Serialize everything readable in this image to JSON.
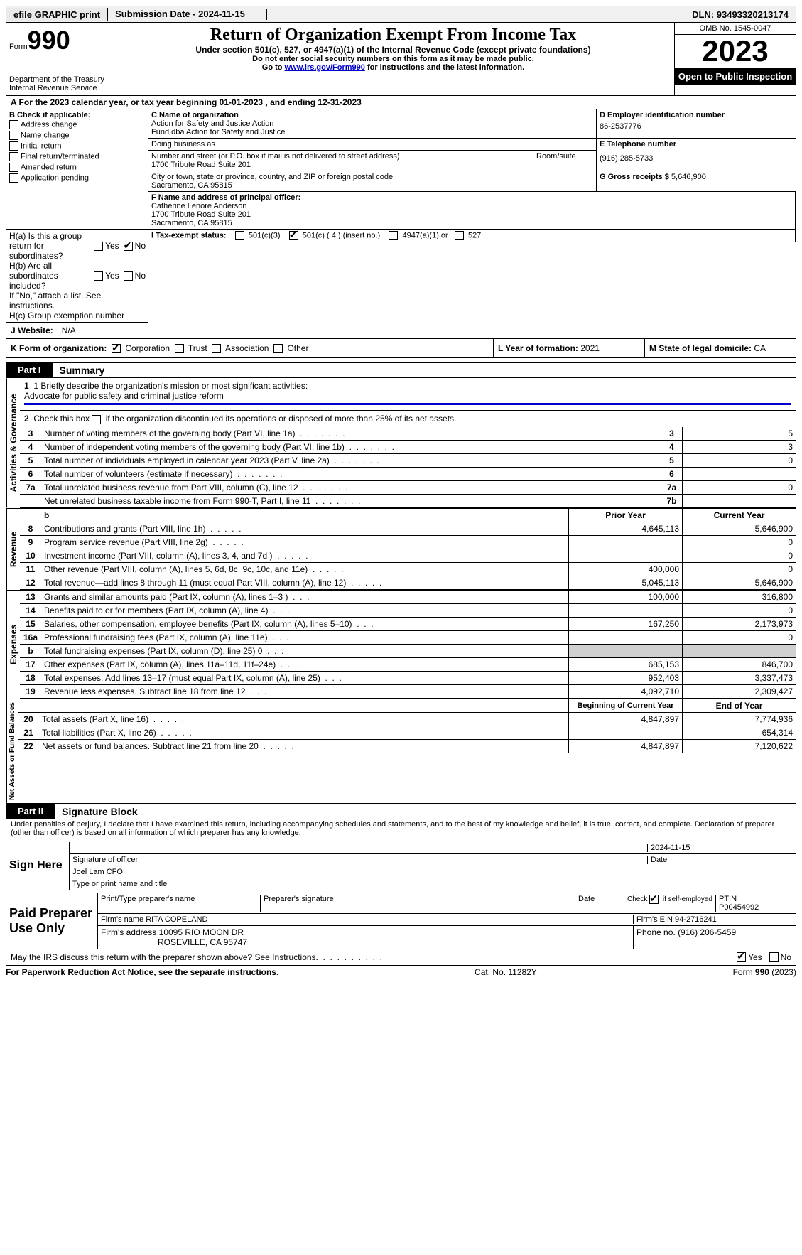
{
  "topbar": {
    "efile": "efile GRAPHIC print",
    "submission_label": "Submission Date - ",
    "submission_date": "2024-11-15",
    "dln_label": "DLN: ",
    "dln": "93493320213174"
  },
  "header": {
    "form_word": "Form",
    "form_number": "990",
    "dept": "Department of the Treasury\nInternal Revenue Service",
    "title": "Return of Organization Exempt From Income Tax",
    "subtitle": "Under section 501(c), 527, or 4947(a)(1) of the Internal Revenue Code (except private foundations)",
    "instr1": "Do not enter social security numbers on this form as it may be made public.",
    "instr2_pre": "Go to ",
    "instr2_link": "www.irs.gov/Form990",
    "instr2_post": " for instructions and the latest information.",
    "omb": "OMB No. 1545-0047",
    "year": "2023",
    "inspect": "Open to Public Inspection"
  },
  "rowA": {
    "text_pre": "A For the 2023 calendar year, or tax year beginning ",
    "begin": "01-01-2023",
    "mid": "   , and ending ",
    "end": "12-31-2023"
  },
  "boxB": {
    "label": "B Check if applicable:",
    "items": [
      "Address change",
      "Name change",
      "Initial return",
      "Final return/terminated",
      "Amended return",
      "Application pending"
    ]
  },
  "boxC": {
    "label": "C Name of organization",
    "name1": "Action for Safety and Justice Action",
    "name2": "Fund dba Action for Safety and Justice",
    "dba_label": "Doing business as",
    "dba": "",
    "street_label": "Number and street (or P.O. box if mail is not delivered to street address)",
    "street": "1700 Tribute Road Suite 201",
    "room_label": "Room/suite",
    "city_label": "City or town, state or province, country, and ZIP or foreign postal code",
    "city": "Sacramento, CA  95815"
  },
  "boxD": {
    "label": "D Employer identification number",
    "value": "86-2537776"
  },
  "boxE": {
    "label": "E Telephone number",
    "value": "(916) 285-5733"
  },
  "boxG": {
    "label": "G Gross receipts $ ",
    "value": "5,646,900"
  },
  "boxF": {
    "label": "F  Name and address of principal officer:",
    "name": "Catherine Lenore Anderson",
    "addr1": "1700 Tribute Road Suite 201",
    "addr2": "Sacramento, CA  95815"
  },
  "boxH": {
    "a_label": "H(a)  Is this a group return for subordinates?",
    "b_label": "H(b)  Are all subordinates included?",
    "note": "If \"No,\" attach a list. See instructions.",
    "c_label": "H(c)  Group exemption number",
    "ha_yes": false,
    "ha_no": true,
    "hb_yes": false,
    "hb_no": false
  },
  "rowI": {
    "label": "I  Tax-exempt status:",
    "opts": [
      "501(c)(3)",
      "501(c) ( 4 ) (insert no.)",
      "4947(a)(1) or",
      "527"
    ],
    "checked_index": 1
  },
  "rowJ": {
    "label": "J  Website:",
    "value": "N/A"
  },
  "rowK": {
    "label": "K Form of organization:",
    "opts": [
      "Corporation",
      "Trust",
      "Association",
      "Other"
    ],
    "checked_index": 0
  },
  "rowL": {
    "label": "L Year of formation: ",
    "value": "2021"
  },
  "rowM": {
    "label": "M State of legal domicile: ",
    "value": "CA"
  },
  "parts": {
    "part1": "Part I",
    "summary": "Summary",
    "part2": "Part II",
    "sigblock": "Signature Block"
  },
  "summary": {
    "line1_label": "1  Briefly describe the organization's mission or most significant activities:",
    "line1_text": "Advocate for public safety and criminal justice reform",
    "line2": "Check this box        if the organization discontinued its operations or disposed of more than 25% of its net assets.",
    "sections": {
      "gov": "Activities & Governance",
      "rev": "Revenue",
      "exp": "Expenses",
      "net": "Net Assets or Fund Balances"
    },
    "col_headers": {
      "prior": "Prior Year",
      "current": "Current Year",
      "begin": "Beginning of Current Year",
      "end": "End of Year"
    },
    "lines": [
      {
        "no": "3",
        "desc": "Number of voting members of the governing body (Part VI, line 1a)",
        "box": "3",
        "val": "5"
      },
      {
        "no": "4",
        "desc": "Number of independent voting members of the governing body (Part VI, line 1b)",
        "box": "4",
        "val": "3"
      },
      {
        "no": "5",
        "desc": "Total number of individuals employed in calendar year 2023 (Part V, line 2a)",
        "box": "5",
        "val": "0"
      },
      {
        "no": "6",
        "desc": "Total number of volunteers (estimate if necessary)",
        "box": "6",
        "val": ""
      },
      {
        "no": "7a",
        "desc": "Total unrelated business revenue from Part VIII, column (C), line 12",
        "box": "7a",
        "val": "0"
      },
      {
        "no": "",
        "desc": "Net unrelated business taxable income from Form 990-T, Part I, line 11",
        "box": "7b",
        "val": ""
      }
    ],
    "rev_lines": [
      {
        "no": "8",
        "desc": "Contributions and grants (Part VIII, line 1h)",
        "prior": "4,645,113",
        "curr": "5,646,900"
      },
      {
        "no": "9",
        "desc": "Program service revenue (Part VIII, line 2g)",
        "prior": "",
        "curr": "0"
      },
      {
        "no": "10",
        "desc": "Investment income (Part VIII, column (A), lines 3, 4, and 7d )",
        "prior": "",
        "curr": "0"
      },
      {
        "no": "11",
        "desc": "Other revenue (Part VIII, column (A), lines 5, 6d, 8c, 9c, 10c, and 11e)",
        "prior": "400,000",
        "curr": "0"
      },
      {
        "no": "12",
        "desc": "Total revenue—add lines 8 through 11 (must equal Part VIII, column (A), line 12)",
        "prior": "5,045,113",
        "curr": "5,646,900"
      }
    ],
    "exp_lines": [
      {
        "no": "13",
        "desc": "Grants and similar amounts paid (Part IX, column (A), lines 1–3 )",
        "prior": "100,000",
        "curr": "316,800"
      },
      {
        "no": "14",
        "desc": "Benefits paid to or for members (Part IX, column (A), line 4)",
        "prior": "",
        "curr": "0"
      },
      {
        "no": "15",
        "desc": "Salaries, other compensation, employee benefits (Part IX, column (A), lines 5–10)",
        "prior": "167,250",
        "curr": "2,173,973"
      },
      {
        "no": "16a",
        "desc": "Professional fundraising fees (Part IX, column (A), line 11e)",
        "prior": "",
        "curr": "0"
      },
      {
        "no": "b",
        "desc": "Total fundraising expenses (Part IX, column (D), line 25) 0",
        "prior": "SHADED",
        "curr": "SHADED"
      },
      {
        "no": "17",
        "desc": "Other expenses (Part IX, column (A), lines 11a–11d, 11f–24e)",
        "prior": "685,153",
        "curr": "846,700"
      },
      {
        "no": "18",
        "desc": "Total expenses. Add lines 13–17 (must equal Part IX, column (A), line 25)",
        "prior": "952,403",
        "curr": "3,337,473"
      },
      {
        "no": "19",
        "desc": "Revenue less expenses. Subtract line 18 from line 12",
        "prior": "4,092,710",
        "curr": "2,309,427"
      }
    ],
    "net_lines": [
      {
        "no": "20",
        "desc": "Total assets (Part X, line 16)",
        "prior": "4,847,897",
        "curr": "7,774,936"
      },
      {
        "no": "21",
        "desc": "Total liabilities (Part X, line 26)",
        "prior": "",
        "curr": "654,314"
      },
      {
        "no": "22",
        "desc": "Net assets or fund balances. Subtract line 21 from line 20",
        "prior": "4,847,897",
        "curr": "7,120,622"
      }
    ]
  },
  "sigblock": {
    "penalty": "Under penalties of perjury, I declare that I have examined this return, including accompanying schedules and statements, and to the best of my knowledge and belief, it is true, correct, and complete. Declaration of preparer (other than officer) is based on all information of which preparer has any knowledge.",
    "sign_here": "Sign Here",
    "sig_date": "2024-11-15",
    "sig_officer_label": "Signature of officer",
    "date_label": "Date",
    "officer_name": "Joel Lam  CFO",
    "name_title_label": "Type or print name and title",
    "paid": "Paid Preparer Use Only",
    "prep_name_label": "Print/Type preparer's name",
    "prep_sig_label": "Preparer's signature",
    "check_self": "Check         if self-employed",
    "check_self_checked": true,
    "ptin_label": "PTIN",
    "ptin": "P00454992",
    "firm_name_label": "Firm's name    ",
    "firm_name": "RITA COPELAND",
    "firm_ein_label": "Firm's EIN  ",
    "firm_ein": "94-2716241",
    "firm_addr_label": "Firm's address ",
    "firm_addr1": "10095 RIO MOON DR",
    "firm_addr2": "ROSEVILLE, CA  95747",
    "phone_label": "Phone no. ",
    "phone": "(916) 206-5459",
    "discuss": "May the IRS discuss this return with the preparer shown above? See Instructions.",
    "discuss_yes": true,
    "discuss_no": false
  },
  "footer": {
    "pra": "For Paperwork Reduction Act Notice, see the separate instructions.",
    "cat": "Cat. No. 11282Y",
    "form": "Form 990 (2023)"
  }
}
